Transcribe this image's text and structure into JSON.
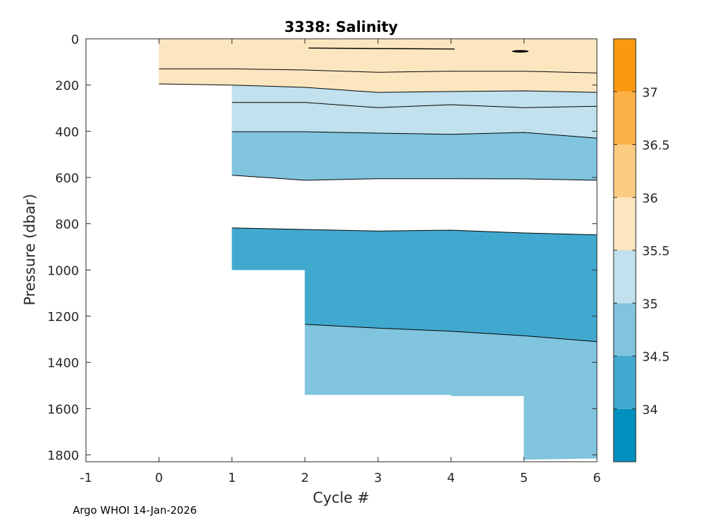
{
  "chart_data": {
    "type": "contour",
    "title": "3338:  Salinity",
    "xlabel": "Cycle #",
    "ylabel": "Pressure (dbar)",
    "xlim": [
      -1,
      6
    ],
    "ylim": [
      1830,
      0
    ],
    "x_ticks": [
      -1,
      0,
      1,
      2,
      3,
      4,
      5,
      6
    ],
    "y_ticks": [
      0,
      200,
      400,
      600,
      800,
      1000,
      1200,
      1400,
      1600,
      1800
    ],
    "colorbar": {
      "range": [
        33.5,
        37.5
      ],
      "ticks": [
        34,
        34.5,
        35,
        35.5,
        36,
        36.5,
        37
      ],
      "bands": [
        {
          "from": 33.5,
          "to": 34.0,
          "color": "#0090be"
        },
        {
          "from": 34.0,
          "to": 34.5,
          "color": "#41a9cf"
        },
        {
          "from": 34.5,
          "to": 35.0,
          "color": "#80c4de"
        },
        {
          "from": 35.0,
          "to": 35.5,
          "color": "#c0e1ed"
        },
        {
          "from": 35.5,
          "to": 36.0,
          "color": "#fce6c0"
        },
        {
          "from": 36.0,
          "to": 36.5,
          "color": "#fbcb82"
        },
        {
          "from": 36.5,
          "to": 37.0,
          "color": "#fbb146"
        },
        {
          "from": 37.0,
          "to": 37.5,
          "color": "#fb9a10"
        }
      ]
    },
    "cycles": [
      0,
      1,
      2,
      3,
      4,
      5,
      6
    ],
    "max_pressure": [
      200,
      1000,
      1540,
      1540,
      1545,
      1820,
      1815
    ],
    "contours": [
      {
        "level": 35.5,
        "x": [
          0,
          1,
          2,
          3,
          4,
          5,
          6
        ],
        "pressure": [
          195,
          200,
          210,
          232,
          228,
          225,
          232
        ]
      },
      {
        "level": 35.5,
        "x": [
          0,
          1,
          2,
          3,
          4,
          5,
          6
        ],
        "pressure": [
          130,
          130,
          135,
          145,
          140,
          140,
          148
        ]
      },
      {
        "level": 35.0,
        "x": [
          1,
          2,
          3,
          4,
          5,
          6
        ],
        "pressure": [
          275,
          275,
          298,
          285,
          298,
          292
        ]
      },
      {
        "level": 35.0,
        "x": [
          1,
          2,
          3,
          4,
          5,
          6
        ],
        "pressure": [
          402,
          402,
          408,
          413,
          405,
          430
        ]
      },
      {
        "level": 34.5,
        "x": [
          1,
          2,
          3,
          4,
          5,
          6
        ],
        "pressure": [
          590,
          612,
          605,
          605,
          606,
          612
        ]
      },
      {
        "level": 34.5,
        "x": [
          1,
          2,
          3,
          4,
          5,
          6
        ],
        "pressure": [
          818,
          825,
          832,
          828,
          840,
          848
        ]
      },
      {
        "level": 34.5,
        "x": [
          2,
          3,
          4,
          5,
          6
        ],
        "pressure": [
          1235,
          1252,
          1265,
          1285,
          1310
        ]
      }
    ],
    "regions": [
      {
        "salinity_band": [
          35.5,
          36.0
        ],
        "x": [
          0,
          6
        ],
        "top": "surface",
        "bottom": "contour 35.5 lower"
      },
      {
        "salinity_band": [
          35.0,
          35.5
        ],
        "x": [
          1,
          6
        ],
        "top": "contour 35.5 lower",
        "bottom": "contour 35.0 lower"
      },
      {
        "salinity_band": [
          34.5,
          35.0
        ],
        "x": [
          1,
          6
        ],
        "top": "contour 35.0 lower",
        "bottom": "contour 34.5 middle"
      },
      {
        "salinity_band": [
          34.0,
          34.5
        ],
        "x": [
          1,
          6
        ],
        "top": "contour 34.5 middle",
        "bottom": "contour 34.5 deep"
      },
      {
        "salinity_band": [
          34.5,
          35.0
        ],
        "x": [
          2,
          6
        ],
        "top": "contour 34.5 deep",
        "bottom": "max pressure"
      }
    ]
  },
  "footer": "Argo WHOI 14-Jan-2026"
}
